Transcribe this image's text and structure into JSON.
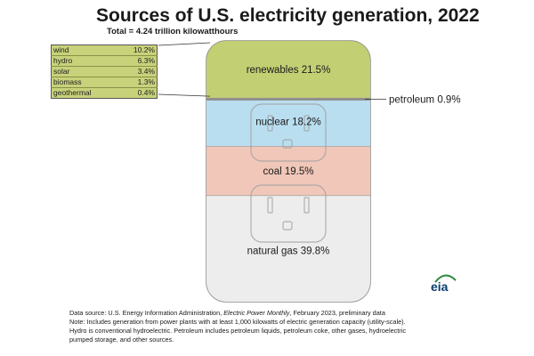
{
  "chart_data": {
    "type": "stacked-bar",
    "title": "Sources of U.S. electricity generation, 2022",
    "subtitle": "Total = 4.24 trillion kilowatthours",
    "unit": "%",
    "segments": [
      {
        "name": "renewables",
        "value": 21.5,
        "label": "renewables 21.5%",
        "color": "#c3cf73"
      },
      {
        "name": "petroleum",
        "value": 0.9,
        "label": "petroleum 0.9%",
        "color": "#8c8c8c"
      },
      {
        "name": "nuclear",
        "value": 18.2,
        "label": "nuclear 18.2%",
        "color": "#b9def0"
      },
      {
        "name": "coal",
        "value": 19.5,
        "label": "coal 19.5%",
        "color": "#f0c7b8"
      },
      {
        "name": "natural gas",
        "value": 39.8,
        "label": "natural gas 39.8%",
        "color": "#ededed"
      }
    ],
    "renewables_breakdown": [
      {
        "name": "wind",
        "value": "10.2%"
      },
      {
        "name": "hydro",
        "value": "6.3%"
      },
      {
        "name": "solar",
        "value": "3.4%"
      },
      {
        "name": "biomass",
        "value": "1.3%"
      },
      {
        "name": "geothermal",
        "value": "0.4%"
      }
    ]
  },
  "logo_text": "eia",
  "notes": {
    "source_prefix": "Data source: U.S. Energy Information Administration, ",
    "source_pub": "Electric Power Monthly",
    "source_suffix": ", February 2023, preliminary data",
    "line2": "Note: Includes generation from power plants with at least 1,000 kilowatts of electric generation capacity (utility-scale).",
    "line3": "Hydro is conventional hydroelectric. Petroleum includes petroleum liquids, petroleum coke, other gases, hydroelectric",
    "line4": "pumped storage, and other sources."
  }
}
